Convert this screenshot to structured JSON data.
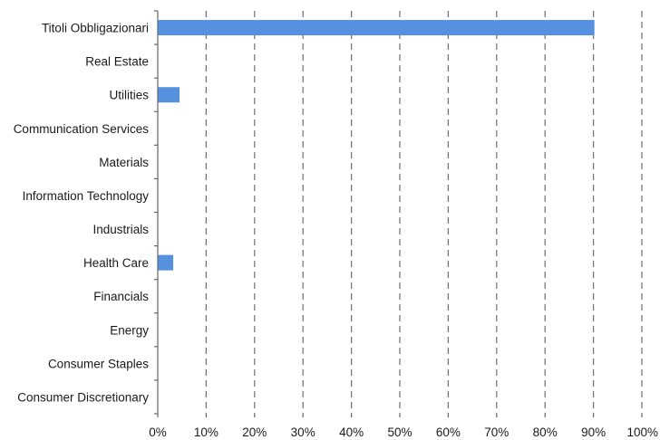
{
  "chart_data": {
    "type": "bar",
    "orientation": "horizontal",
    "categories": [
      "Titoli Obbligazionari",
      "Real Estate",
      "Utilities",
      "Communication Services",
      "Materials",
      "Information Technology",
      "Industrials",
      "Health Care",
      "Financials",
      "Energy",
      "Consumer Staples",
      "Consumer Discretionary"
    ],
    "values": [
      90.2,
      0,
      4.5,
      0,
      0,
      0,
      0,
      3.2,
      0,
      0,
      0,
      0
    ],
    "xlim": [
      0,
      100
    ],
    "x_ticks": [
      0,
      10,
      20,
      30,
      40,
      50,
      60,
      70,
      80,
      90,
      100
    ],
    "x_tick_labels": [
      "0%",
      "10%",
      "20%",
      "30%",
      "40%",
      "50%",
      "60%",
      "70%",
      "80%",
      "90%",
      "100%"
    ],
    "title": "",
    "xlabel": "",
    "ylabel": "",
    "grid": "vertical dashed",
    "legend": "none",
    "colors": {
      "bar": "#5591de",
      "grid": "#6f6f6f",
      "axis": "#666666"
    }
  }
}
